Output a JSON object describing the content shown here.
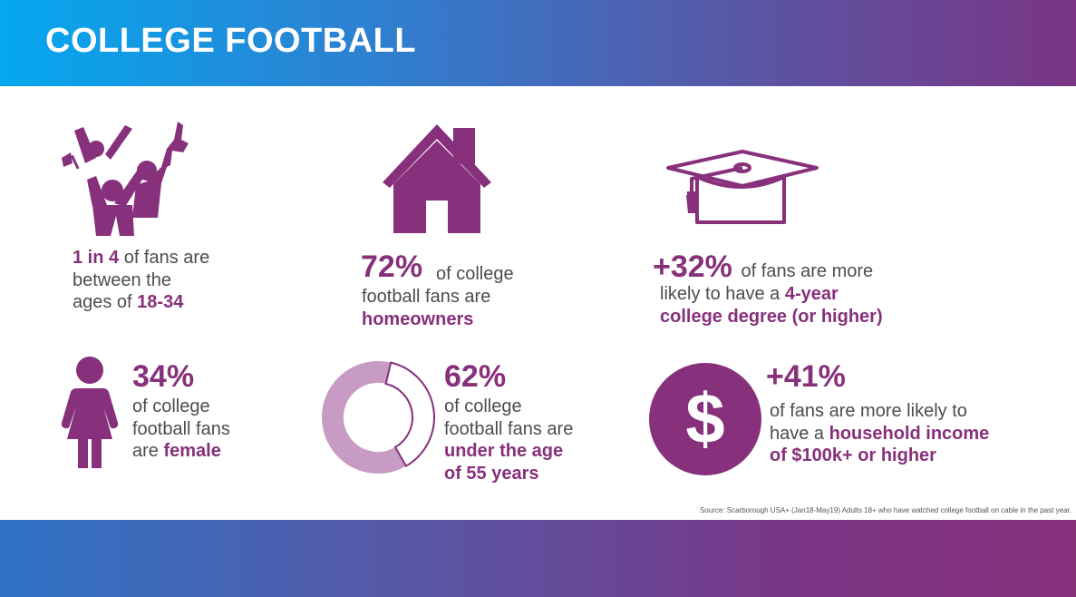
{
  "header": {
    "title": "COLLEGE FOOTBALL"
  },
  "colors": {
    "accent": "#87307b",
    "light_accent": "#c79bc4",
    "text": "#4d4d4f",
    "gradient_start": "#04a8ef",
    "gradient_end": "#7a3585"
  },
  "stats": {
    "age": {
      "icon": "cheering-fans-icon",
      "highlight": "1 in 4",
      "line1_rest": " of fans are",
      "line2": "between the",
      "line3_pre": "ages of ",
      "line3_highlight": "18-34"
    },
    "home": {
      "icon": "house-icon",
      "value": "72%",
      "line1_rest": "of college",
      "line2": "football fans are",
      "line3_highlight": "homeowners"
    },
    "degree": {
      "icon": "graduation-cap-icon",
      "value": "+32%",
      "line1_rest": " of fans are more",
      "line2_pre": "likely to have a ",
      "line2_highlight": "4-year",
      "line3_highlight": "college degree (or higher)"
    },
    "female": {
      "icon": "female-icon",
      "value": "34%",
      "line1": "of college",
      "line2": "football fans",
      "line3_pre": "are ",
      "line3_highlight": "female"
    },
    "age55": {
      "icon": "donut-chart-icon",
      "percent": 62,
      "value": "62%",
      "line1": "of college",
      "line2": "football fans are",
      "line3_highlight": "under the age",
      "line4_highlight": "of 55 years"
    },
    "income": {
      "icon": "dollar-icon",
      "value": "+41%",
      "line1": "of fans are more likely to",
      "line2_pre": "have a ",
      "line2_highlight": "household income",
      "line3_highlight": "of $100k+ or higher"
    }
  },
  "source": "Source: Scarborough USA+ (Jan18-May19) Adults 18+ who have watched college football on cable in the past year."
}
